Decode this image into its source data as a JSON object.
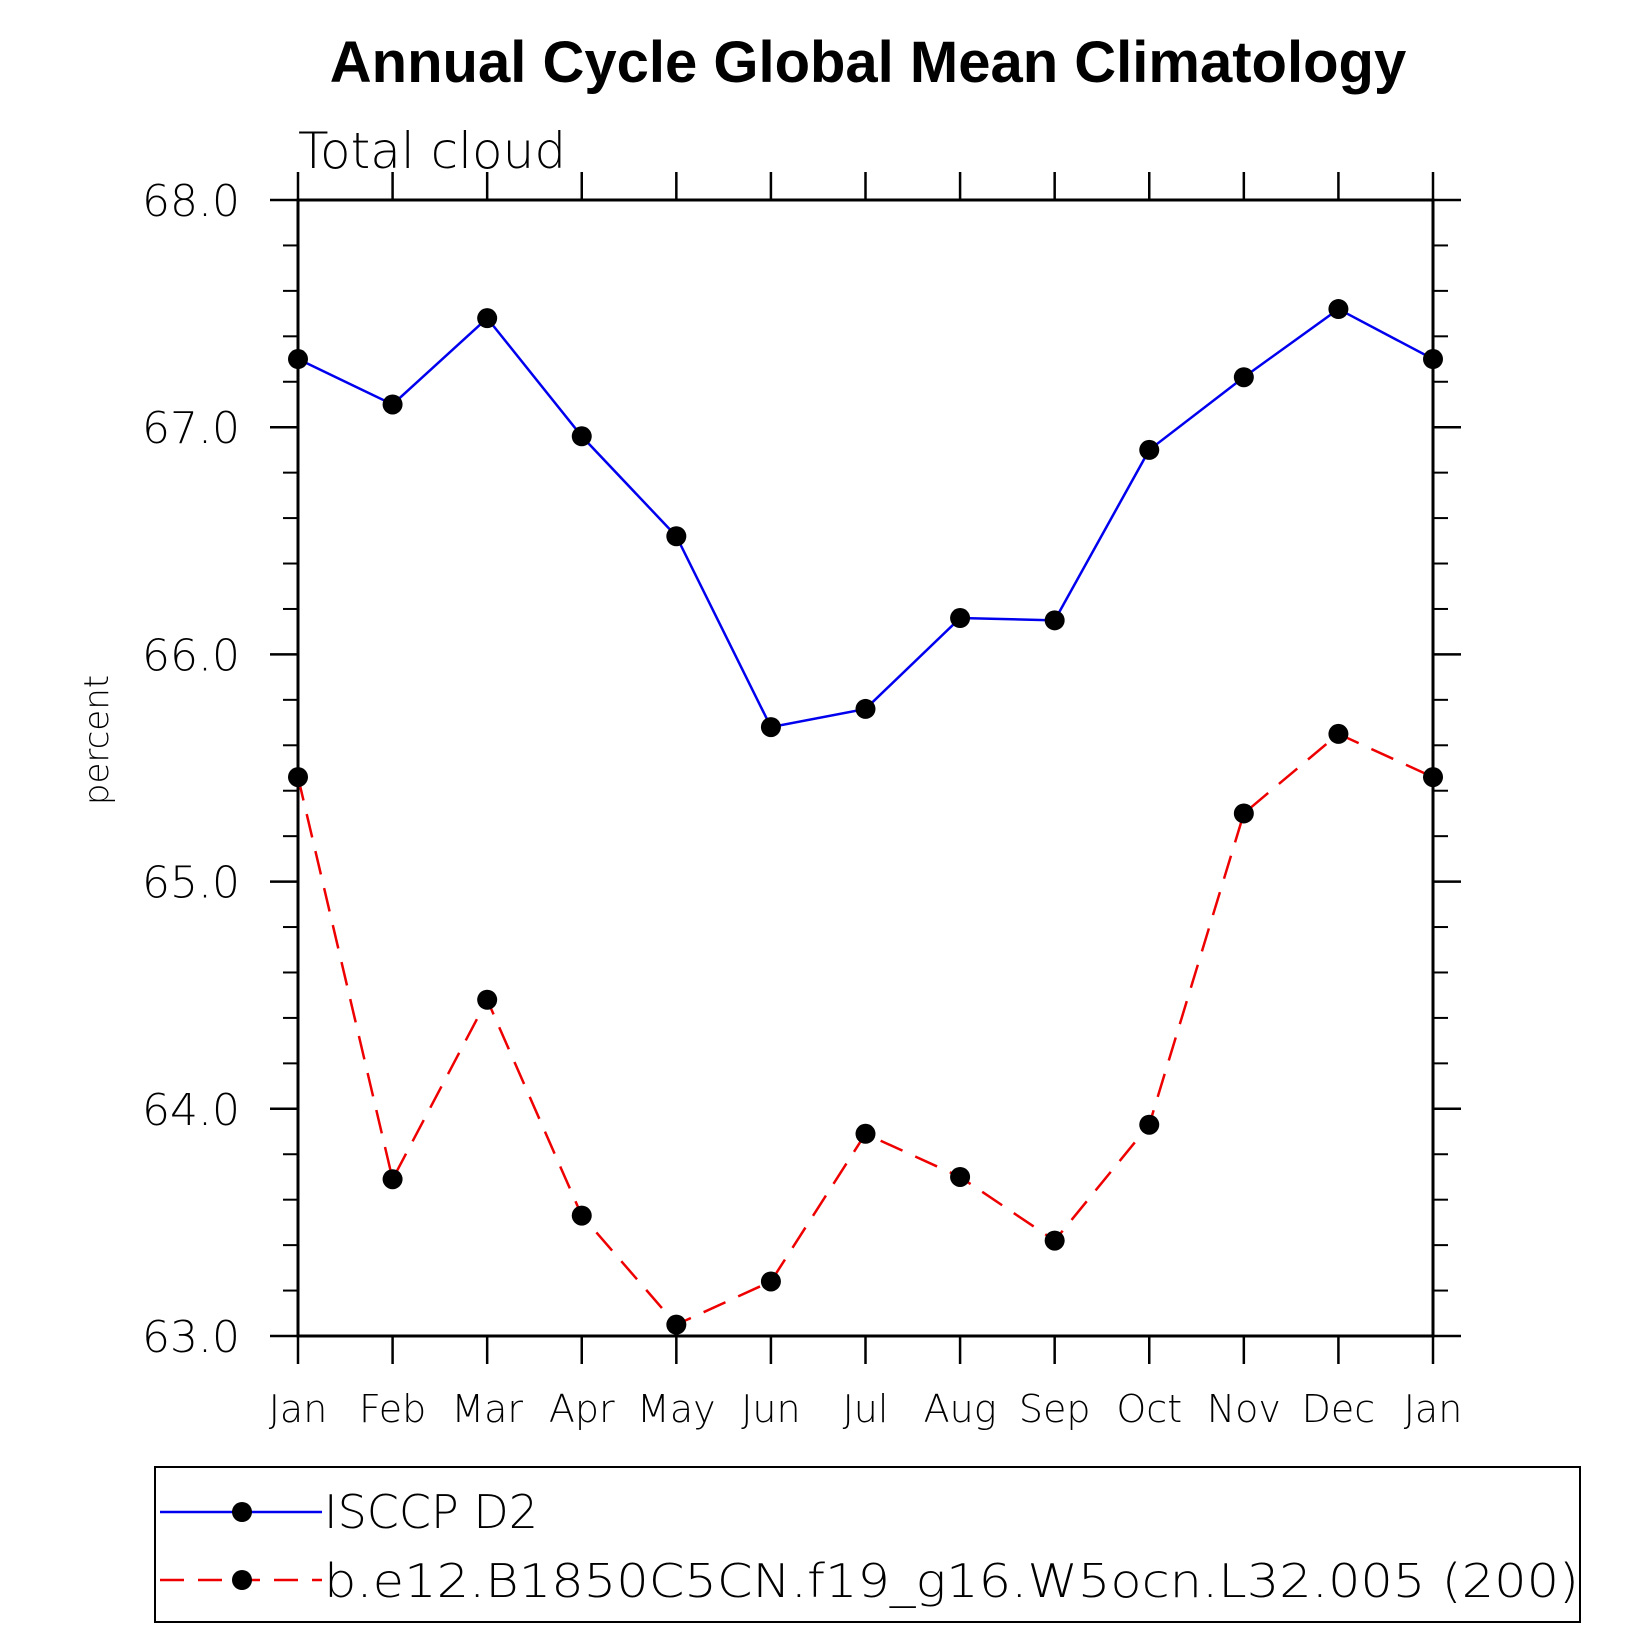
{
  "chart_data": {
    "type": "line",
    "title": "Annual Cycle Global Mean Climatology",
    "subtitle": "Total cloud",
    "xlabel": "",
    "ylabel": "percent",
    "categories": [
      "Jan",
      "Feb",
      "Mar",
      "Apr",
      "May",
      "Jun",
      "Jul",
      "Aug",
      "Sep",
      "Oct",
      "Nov",
      "Dec",
      "Jan"
    ],
    "ylim": [
      63.0,
      68.0
    ],
    "yticks": [
      "63.0",
      "64.0",
      "65.0",
      "66.0",
      "67.0",
      "68.0"
    ],
    "y_minor_step": 0.2,
    "grid": false,
    "legend_position": "bottom",
    "series": [
      {
        "name": "ISCCP D2",
        "color": "#0000ee",
        "dash": "solid",
        "marker": "filled-circle",
        "values": [
          67.3,
          67.1,
          67.48,
          66.96,
          66.52,
          65.68,
          65.76,
          66.16,
          66.15,
          66.9,
          67.22,
          67.52,
          67.3
        ]
      },
      {
        "name": "b.e12.B1850C5CN.f19_g16.W5ocn.L32.005 (200)",
        "color": "#ee0000",
        "dash": "dashed",
        "marker": "filled-circle",
        "values": [
          65.46,
          63.69,
          64.48,
          63.53,
          63.05,
          63.24,
          63.89,
          63.7,
          63.42,
          63.93,
          65.3,
          65.65,
          65.46
        ]
      }
    ]
  }
}
